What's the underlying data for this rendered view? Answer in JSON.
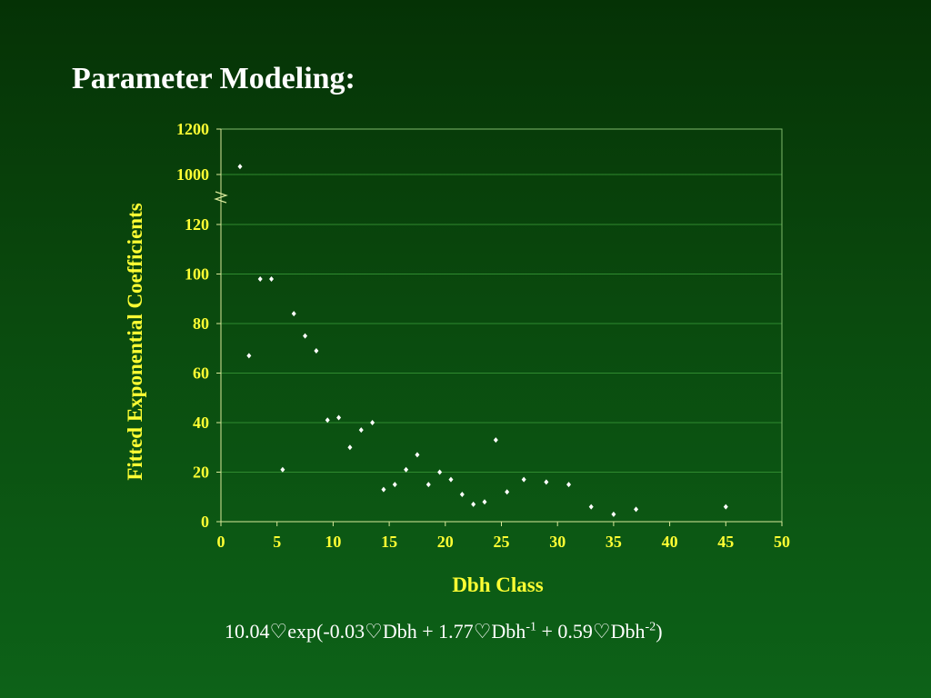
{
  "slide": {
    "title": "Parameter Modeling:"
  },
  "equation": {
    "prefix": "10.04",
    "term1": "exp(-0.03",
    "term2": "Dbh + 1.77",
    "term3": "Dbh",
    "exp1": "-1",
    "term4": " + 0.59",
    "term5": "Dbh",
    "exp2": "-2",
    "suffix": ")",
    "operator_symbol": "♡"
  },
  "chart_data": {
    "type": "scatter",
    "title": "",
    "xlabel": "Dbh Class",
    "ylabel": "Fitted Exponential Coefficients",
    "xlim": [
      0,
      50
    ],
    "xticks": [
      0,
      5,
      10,
      15,
      20,
      25,
      30,
      35,
      40,
      45,
      50
    ],
    "ytick_labels": [
      "0",
      "20",
      "40",
      "60",
      "80",
      "100",
      "120",
      "1000",
      "1200"
    ],
    "y_axis_break": "between 120 and 1000",
    "grid": "horizontal",
    "legend": "none",
    "colors": {
      "points": "#ffffff",
      "axis_text": "#ffff33",
      "grid": "#2f8a2f"
    },
    "series": [
      {
        "x": [
          1.7,
          2.5,
          3.5,
          4.5,
          5.5,
          6.5,
          7.5,
          8.5,
          9.5,
          10.5,
          11.5,
          12.5,
          13.5,
          14.5,
          15.5,
          16.5,
          17.5,
          18.5,
          19.5,
          20.5,
          21.5,
          22.5,
          23.5,
          24.5,
          25.5,
          27,
          29,
          31,
          33,
          35,
          37,
          45
        ],
        "y": [
          1035,
          67,
          98,
          98,
          21,
          84,
          75,
          69,
          41,
          42,
          30,
          37,
          40,
          13,
          15,
          21,
          27,
          15,
          20,
          17,
          11,
          7,
          8,
          33,
          12,
          17,
          16,
          15,
          6,
          3,
          5,
          6
        ]
      }
    ]
  }
}
